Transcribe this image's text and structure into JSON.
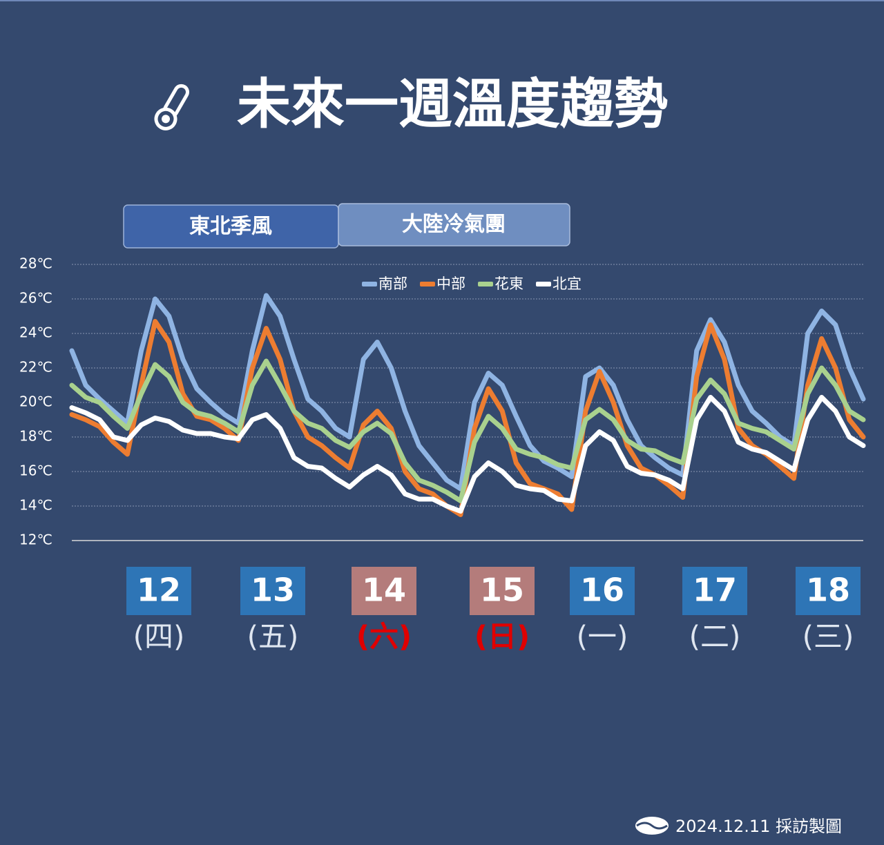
{
  "title": "未來一週溫度趨勢",
  "periods": [
    "東北季風",
    "大陸冷氣團"
  ],
  "days": [
    {
      "date": "12",
      "weekday": "(四)",
      "color": "#2e75b6",
      "weekday_color": "#dfe6f0"
    },
    {
      "date": "13",
      "weekday": "(五)",
      "color": "#2e75b6",
      "weekday_color": "#dfe6f0"
    },
    {
      "date": "14",
      "weekday": "(六)",
      "color": "#b47c7b",
      "weekday_color": "#e00000"
    },
    {
      "date": "15",
      "weekday": "(日)",
      "color": "#b47c7b",
      "weekday_color": "#e00000"
    },
    {
      "date": "16",
      "weekday": "(一)",
      "color": "#2e75b6",
      "weekday_color": "#dfe6f0"
    },
    {
      "date": "17",
      "weekday": "(二)",
      "color": "#2e75b6",
      "weekday_color": "#dfe6f0"
    },
    {
      "date": "18",
      "weekday": "(三)",
      "color": "#2e75b6",
      "weekday_color": "#dfe6f0"
    }
  ],
  "footer": "2024.12.11 採訪製圖",
  "chart_data": {
    "type": "line",
    "categories": [
      null,
      null,
      null,
      null,
      null,
      null,
      null,
      null,
      null,
      null,
      null,
      null,
      null,
      null,
      null,
      null,
      null,
      null,
      null,
      null,
      null,
      null,
      null,
      null,
      null,
      null,
      null,
      null,
      null,
      null,
      null,
      null,
      null,
      null,
      null,
      null,
      null,
      null,
      null,
      null,
      null,
      null,
      null,
      null,
      null,
      null,
      null,
      null,
      null,
      null,
      null,
      null,
      null,
      null,
      null,
      null,
      null,
      null
    ],
    "ylim": [
      12,
      28
    ],
    "yticks": [
      {
        "value": 12,
        "label": "12℃"
      },
      {
        "value": 14,
        "label": "14℃"
      },
      {
        "value": 16,
        "label": "16℃"
      },
      {
        "value": 18,
        "label": "18℃"
      },
      {
        "value": 20,
        "label": "20℃"
      },
      {
        "value": 22,
        "label": "22℃"
      },
      {
        "value": 24,
        "label": "24℃"
      },
      {
        "value": 26,
        "label": "26℃"
      },
      {
        "value": 28,
        "label": "28℃"
      }
    ],
    "grid": true,
    "legend": "top",
    "series": [
      {
        "name": "南部",
        "color": "#8fb4e3",
        "values": [
          23,
          21,
          20.2,
          19.5,
          18.8,
          23,
          26,
          25,
          22.5,
          20.8,
          20,
          19.3,
          18.8,
          23,
          26.2,
          25,
          22.5,
          20.2,
          19.5,
          18.5,
          18,
          22.5,
          23.5,
          22,
          19.5,
          17.5,
          16.5,
          15.5,
          15,
          20,
          21.7,
          21,
          19.2,
          17.5,
          16.6,
          16.2,
          15.7,
          21.5,
          22,
          21,
          19,
          17.5,
          16.8,
          16.2,
          15.8,
          23,
          24.8,
          23.5,
          21,
          19.5,
          18.8,
          18,
          17.5,
          24,
          25.3,
          24.5,
          22,
          20.2
        ]
      },
      {
        "name": "中部",
        "color": "#ed7d31",
        "values": [
          19.3,
          19,
          18.6,
          17.7,
          17,
          21,
          24.7,
          23.5,
          20.5,
          19.2,
          19,
          18.5,
          17.8,
          22,
          24.3,
          22.5,
          19.5,
          18,
          17.5,
          16.8,
          16.2,
          18.7,
          19.5,
          18.5,
          16,
          15,
          14.7,
          14,
          13.5,
          18.5,
          20.8,
          19.5,
          16.5,
          15.3,
          15,
          14.7,
          13.8,
          19.5,
          21.8,
          20,
          17.5,
          16.2,
          15.8,
          15.2,
          14.5,
          21.5,
          24.5,
          22.5,
          18.5,
          17.5,
          17,
          16.3,
          15.6,
          21,
          23.7,
          22,
          19,
          18
        ]
      },
      {
        "name": "花東",
        "color": "#a9d18e",
        "values": [
          21,
          20.3,
          20,
          19.2,
          18.5,
          20.5,
          22.2,
          21.5,
          20,
          19.4,
          19.2,
          18.8,
          18.3,
          21,
          22.4,
          21,
          19.5,
          18.8,
          18.5,
          17.8,
          17.4,
          18.3,
          18.8,
          18.2,
          16.5,
          15.5,
          15.2,
          14.8,
          14.3,
          17.7,
          19.2,
          18.5,
          17.3,
          17,
          16.8,
          16.4,
          16.2,
          19,
          19.6,
          19,
          17.8,
          17.3,
          17.2,
          16.8,
          16.5,
          20.2,
          21.3,
          20.5,
          18.8,
          18.5,
          18.3,
          17.8,
          17.3,
          20.5,
          22,
          21,
          19.5,
          19
        ]
      },
      {
        "name": "北宜",
        "color": "#ffffff",
        "values": [
          19.7,
          19.4,
          19,
          18,
          17.8,
          18.7,
          19.1,
          18.9,
          18.4,
          18.2,
          18.2,
          18,
          17.9,
          19,
          19.3,
          18.5,
          16.8,
          16.3,
          16.2,
          15.6,
          15.1,
          15.8,
          16.3,
          15.8,
          14.7,
          14.4,
          14.4,
          14,
          13.7,
          15.7,
          16.5,
          16,
          15.2,
          15,
          14.9,
          14.4,
          14.3,
          17.5,
          18.3,
          17.8,
          16.3,
          15.9,
          15.8,
          15.5,
          15,
          19,
          20.3,
          19.5,
          17.7,
          17.3,
          17.1,
          16.6,
          16.1,
          19,
          20.3,
          19.5,
          18,
          17.5
        ]
      }
    ]
  }
}
